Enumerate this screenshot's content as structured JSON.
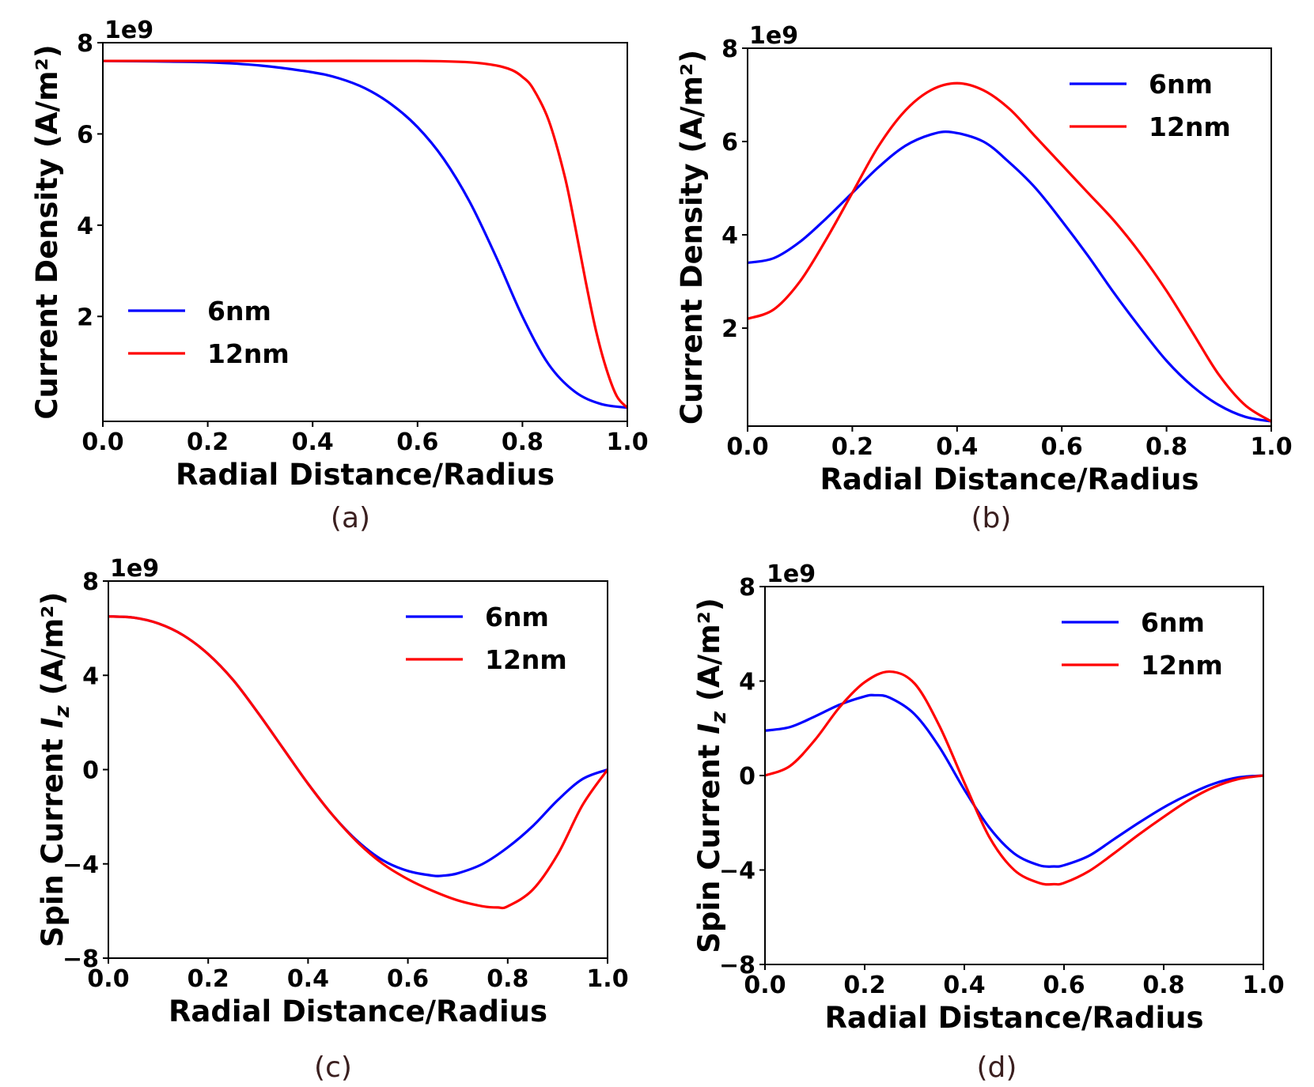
{
  "chart_data": [
    {
      "type": "line",
      "caption": "(a)",
      "xlabel": "Radial Distance/Radius",
      "ylabel": "Current Density (A/m²)",
      "offset_text": "1e9",
      "xlim": [
        0.0,
        1.0
      ],
      "ylim": [
        -0.3,
        8.0
      ],
      "xticks": [
        "0.0",
        "0.2",
        "0.4",
        "0.6",
        "0.8",
        "1.0"
      ],
      "yticks": [
        {
          "value": 2,
          "label": "2"
        },
        {
          "value": 4,
          "label": "4"
        },
        {
          "value": 6,
          "label": "6"
        },
        {
          "value": 8,
          "label": "8"
        }
      ],
      "legend": "lower-left",
      "colors": {
        "6nm": "#0000ff",
        "12nm": "#ff0000"
      },
      "series": [
        {
          "name": "6nm",
          "color": "#0000ff",
          "x": [
            0.0,
            0.1,
            0.2,
            0.3,
            0.4,
            0.45,
            0.5,
            0.55,
            0.6,
            0.65,
            0.7,
            0.75,
            0.8,
            0.85,
            0.9,
            0.95,
            1.0
          ],
          "y": [
            7.6,
            7.59,
            7.57,
            7.5,
            7.35,
            7.22,
            7.0,
            6.65,
            6.15,
            5.45,
            4.5,
            3.3,
            2.0,
            0.95,
            0.35,
            0.08,
            0.0
          ]
        },
        {
          "name": "12nm",
          "color": "#ff0000",
          "x": [
            0.0,
            0.2,
            0.4,
            0.6,
            0.7,
            0.75,
            0.78,
            0.8,
            0.82,
            0.85,
            0.88,
            0.9,
            0.92,
            0.94,
            0.96,
            0.98,
            1.0
          ],
          "y": [
            7.6,
            7.6,
            7.6,
            7.6,
            7.57,
            7.5,
            7.4,
            7.25,
            7.0,
            6.3,
            5.1,
            4.0,
            2.8,
            1.7,
            0.85,
            0.25,
            0.0
          ]
        }
      ]
    },
    {
      "type": "line",
      "caption": "(b)",
      "xlabel": "Radial Distance/Radius",
      "ylabel": "Current Density (A/m²)",
      "offset_text": "1e9",
      "xlim": [
        0.0,
        1.0
      ],
      "ylim": [
        -0.1,
        8.0
      ],
      "xticks": [
        "0.0",
        "0.2",
        "0.4",
        "0.6",
        "0.8",
        "1.0"
      ],
      "yticks": [
        {
          "value": 2,
          "label": "2"
        },
        {
          "value": 4,
          "label": "4"
        },
        {
          "value": 6,
          "label": "6"
        },
        {
          "value": 8,
          "label": "8"
        }
      ],
      "legend": "upper-right",
      "colors": {
        "6nm": "#0000ff",
        "12nm": "#ff0000"
      },
      "series": [
        {
          "name": "6nm",
          "color": "#0000ff",
          "x": [
            0.0,
            0.05,
            0.1,
            0.15,
            0.2,
            0.25,
            0.3,
            0.35,
            0.39,
            0.45,
            0.5,
            0.55,
            0.6,
            0.65,
            0.7,
            0.75,
            0.8,
            0.85,
            0.9,
            0.95,
            1.0
          ],
          "y": [
            3.4,
            3.5,
            3.85,
            4.35,
            4.9,
            5.45,
            5.9,
            6.15,
            6.2,
            6.0,
            5.55,
            5.0,
            4.3,
            3.55,
            2.75,
            2.0,
            1.3,
            0.75,
            0.35,
            0.1,
            0.0
          ]
        },
        {
          "name": "12nm",
          "color": "#ff0000",
          "x": [
            0.0,
            0.05,
            0.1,
            0.15,
            0.2,
            0.25,
            0.3,
            0.35,
            0.4,
            0.45,
            0.5,
            0.55,
            0.6,
            0.65,
            0.7,
            0.75,
            0.8,
            0.85,
            0.9,
            0.95,
            1.0
          ],
          "y": [
            2.2,
            2.4,
            3.0,
            3.9,
            4.9,
            5.9,
            6.65,
            7.1,
            7.25,
            7.1,
            6.7,
            6.1,
            5.5,
            4.9,
            4.3,
            3.6,
            2.8,
            1.9,
            1.0,
            0.35,
            0.0
          ]
        }
      ]
    },
    {
      "type": "line",
      "caption": "(c)",
      "xlabel": "Radial Distance/Radius",
      "ylabel_prefix": "Spin Current ",
      "ylabel_var": "I",
      "ylabel_sub": "z",
      "ylabel_suffix": " (A/m²)",
      "offset_text": "1e9",
      "xlim": [
        0.0,
        1.0
      ],
      "ylim": [
        -8.0,
        8.0
      ],
      "xticks": [
        "0.0",
        "0.2",
        "0.4",
        "0.6",
        "0.8",
        "1.0"
      ],
      "yticks": [
        {
          "value": -8,
          "label": "−8"
        },
        {
          "value": -4,
          "label": "−4"
        },
        {
          "value": 0,
          "label": "0"
        },
        {
          "value": 4,
          "label": "4"
        },
        {
          "value": 8,
          "label": "8"
        }
      ],
      "legend": "upper-right",
      "colors": {
        "6nm": "#0000ff",
        "12nm": "#ff0000"
      },
      "series": [
        {
          "name": "6nm",
          "color": "#0000ff",
          "x": [
            0.0,
            0.05,
            0.1,
            0.15,
            0.2,
            0.25,
            0.3,
            0.35,
            0.4,
            0.45,
            0.5,
            0.55,
            0.6,
            0.65,
            0.67,
            0.7,
            0.75,
            0.8,
            0.85,
            0.9,
            0.95,
            1.0
          ],
          "y": [
            6.5,
            6.45,
            6.2,
            5.7,
            4.9,
            3.8,
            2.4,
            0.9,
            -0.6,
            -1.95,
            -3.05,
            -3.85,
            -4.3,
            -4.5,
            -4.5,
            -4.4,
            -4.0,
            -3.3,
            -2.4,
            -1.3,
            -0.4,
            0.0
          ]
        },
        {
          "name": "12nm",
          "color": "#ff0000",
          "x": [
            0.0,
            0.05,
            0.1,
            0.15,
            0.2,
            0.25,
            0.3,
            0.35,
            0.4,
            0.45,
            0.5,
            0.55,
            0.6,
            0.65,
            0.7,
            0.75,
            0.78,
            0.8,
            0.85,
            0.9,
            0.95,
            1.0
          ],
          "y": [
            6.5,
            6.45,
            6.2,
            5.7,
            4.9,
            3.8,
            2.4,
            0.9,
            -0.6,
            -1.95,
            -3.1,
            -4.0,
            -4.65,
            -5.15,
            -5.55,
            -5.8,
            -5.85,
            -5.8,
            -5.1,
            -3.6,
            -1.5,
            0.0
          ]
        }
      ]
    },
    {
      "type": "line",
      "caption": "(d)",
      "xlabel": "Radial Distance/Radius",
      "ylabel_prefix": "Spin Current ",
      "ylabel_var": "I",
      "ylabel_sub": "z",
      "ylabel_suffix": " (A/m²)",
      "offset_text": "1e9",
      "xlim": [
        0.0,
        1.0
      ],
      "ylim": [
        -8.0,
        8.0
      ],
      "xticks": [
        "0.0",
        "0.2",
        "0.4",
        "0.6",
        "0.8",
        "1.0"
      ],
      "yticks": [
        {
          "value": -8,
          "label": "−8"
        },
        {
          "value": -4,
          "label": "−4"
        },
        {
          "value": 0,
          "label": "0"
        },
        {
          "value": 4,
          "label": "4"
        },
        {
          "value": 8,
          "label": "8"
        }
      ],
      "legend": "upper-right",
      "colors": {
        "6nm": "#0000ff",
        "12nm": "#ff0000"
      },
      "series": [
        {
          "name": "6nm",
          "color": "#0000ff",
          "x": [
            0.0,
            0.05,
            0.1,
            0.15,
            0.2,
            0.22,
            0.25,
            0.3,
            0.35,
            0.4,
            0.45,
            0.5,
            0.55,
            0.58,
            0.6,
            0.65,
            0.7,
            0.75,
            0.8,
            0.85,
            0.9,
            0.95,
            1.0
          ],
          "y": [
            1.9,
            2.05,
            2.5,
            3.0,
            3.35,
            3.4,
            3.3,
            2.6,
            1.2,
            -0.6,
            -2.2,
            -3.3,
            -3.8,
            -3.85,
            -3.8,
            -3.4,
            -2.7,
            -2.0,
            -1.35,
            -0.8,
            -0.35,
            -0.08,
            0.0
          ]
        },
        {
          "name": "12nm",
          "color": "#ff0000",
          "x": [
            0.0,
            0.05,
            0.1,
            0.15,
            0.2,
            0.25,
            0.3,
            0.35,
            0.4,
            0.45,
            0.5,
            0.55,
            0.58,
            0.6,
            0.65,
            0.7,
            0.75,
            0.8,
            0.85,
            0.9,
            0.95,
            1.0
          ],
          "y": [
            0.0,
            0.4,
            1.5,
            2.9,
            3.95,
            4.4,
            3.9,
            2.1,
            -0.3,
            -2.6,
            -4.0,
            -4.55,
            -4.6,
            -4.55,
            -4.05,
            -3.3,
            -2.5,
            -1.75,
            -1.05,
            -0.5,
            -0.15,
            0.0
          ]
        }
      ]
    }
  ]
}
